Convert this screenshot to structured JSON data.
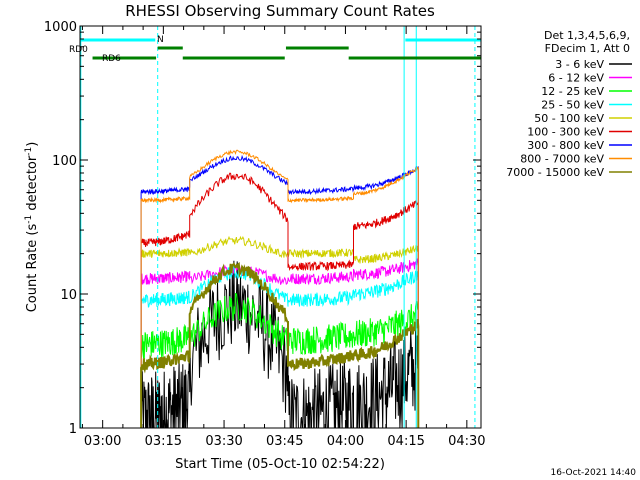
{
  "chart_data": {
    "type": "line",
    "title": "RHESSI Observing Summary Count Rates",
    "xlabel": "Start Time (05-Oct-10 02:54:22)",
    "ylabel_main": "Count Rate (s",
    "ylabel_sup1": "-1",
    "ylabel_mid": " detector",
    "ylabel_sup2": "-1",
    "ylabel_end": ")",
    "y_scale": "log",
    "ylim": [
      1,
      1000
    ],
    "xlim_minutes": [
      -5.6,
      33.5
    ],
    "x_ticks": [
      {
        "t": 0,
        "label": "03:00"
      },
      {
        "t": 15,
        "label": "03:15"
      },
      {
        "t": 30,
        "label": "03:30"
      },
      {
        "t": 45,
        "label": "03:45"
      },
      {
        "t": 60,
        "label": "04:00"
      },
      {
        "t": 75,
        "label": "04:15"
      },
      {
        "t": 90,
        "label": "04:30"
      }
    ],
    "y_ticks": [
      {
        "v": 1,
        "label": "1"
      },
      {
        "v": 10,
        "label": "10"
      },
      {
        "v": 100,
        "label": "100"
      },
      {
        "v": 1000,
        "label": "1000"
      }
    ],
    "legend_header": [
      "Det 1,3,4,5,6,9,",
      "FDecim 1, Att 0"
    ],
    "legend_placement": "right",
    "series": [
      {
        "name": "3 - 6 keV",
        "color": "#000000"
      },
      {
        "name": "6 - 12 keV",
        "color": "#ff00ff"
      },
      {
        "name": "12 - 25 keV",
        "color": "#00ff00"
      },
      {
        "name": "25 - 50 keV",
        "color": "#00ffff"
      },
      {
        "name": "50 - 100 keV",
        "color": "#d0d000"
      },
      {
        "name": "100 - 300 keV",
        "color": "#e00000"
      },
      {
        "name": "300 - 800 keV",
        "color": "#0000ff"
      },
      {
        "name": "800 - 7000 keV",
        "color": "#ff8c00"
      },
      {
        "name": "7000 - 15000 keV",
        "color": "#808000"
      }
    ],
    "flags": [
      {
        "label": "RD0",
        "color": "#008000"
      },
      {
        "label": "RD6",
        "color": "#008000"
      },
      {
        "label": "N",
        "color": "#00ffff"
      }
    ],
    "footer_timestamp": "16-Oct-2021 14:40"
  }
}
